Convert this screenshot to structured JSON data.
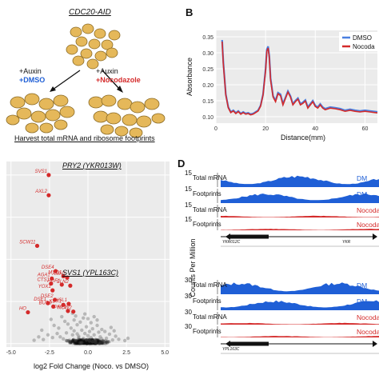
{
  "panelA": {
    "strain": "CDC20-AID",
    "left_line1": "+Auxin",
    "left_line2": "+DMSO",
    "right_line1": "+Auxin",
    "right_line2": "+Nocodazole",
    "caption": "Harvest total mRNA and ribosome footprints",
    "colors": {
      "dmso": "#1f5fd6",
      "noco": "#d42a2a",
      "cell": "#e5b85a",
      "cell_edge": "#8a6a25"
    }
  },
  "panelB": {
    "letter": "B",
    "chart_data": {
      "type": "line",
      "xlabel": "Distance(mm)",
      "ylabel": "Absorbance",
      "xlim": [
        0,
        65
      ],
      "ylim": [
        0.08,
        0.37
      ],
      "xticks": [
        0,
        20,
        40,
        60
      ],
      "yticks": [
        0.1,
        0.15,
        0.2,
        0.25,
        0.3,
        0.35
      ],
      "ytick_labels": [
        "0.10",
        "0.15",
        "0.20",
        "0.25",
        "0.30",
        "0.35"
      ],
      "legend_position": "top-right",
      "series": [
        {
          "name": "DMSO",
          "color": "#4a7fe0",
          "x": [
            2.5,
            3,
            4,
            5,
            6,
            7,
            8,
            9,
            10,
            11,
            12,
            13,
            14,
            15,
            16,
            17,
            18,
            19,
            20,
            20.5,
            21,
            21.5,
            22,
            23,
            24,
            25,
            26,
            27,
            28,
            29,
            30,
            31,
            32,
            33,
            34,
            35,
            36,
            37,
            38,
            39,
            40,
            41,
            42,
            43,
            44,
            46,
            48,
            50,
            52,
            54,
            56,
            58,
            60,
            62,
            64,
            65
          ],
          "y": [
            0.34,
            0.27,
            0.17,
            0.13,
            0.115,
            0.12,
            0.112,
            0.118,
            0.11,
            0.115,
            0.11,
            0.112,
            0.108,
            0.11,
            0.115,
            0.12,
            0.135,
            0.17,
            0.25,
            0.31,
            0.32,
            0.29,
            0.22,
            0.165,
            0.15,
            0.175,
            0.17,
            0.14,
            0.16,
            0.18,
            0.165,
            0.14,
            0.15,
            0.158,
            0.14,
            0.145,
            0.152,
            0.13,
            0.14,
            0.15,
            0.135,
            0.13,
            0.14,
            0.13,
            0.125,
            0.13,
            0.128,
            0.125,
            0.12,
            0.123,
            0.12,
            0.118,
            0.12,
            0.118,
            0.116,
            0.115
          ]
        },
        {
          "name": "Nocodazole",
          "color": "#d42a2a",
          "x": [
            2.5,
            3,
            4,
            5,
            6,
            7,
            8,
            9,
            10,
            11,
            12,
            13,
            14,
            15,
            16,
            17,
            18,
            19,
            20,
            20.5,
            21,
            21.5,
            22,
            23,
            24,
            25,
            26,
            27,
            28,
            29,
            30,
            31,
            32,
            33,
            34,
            35,
            36,
            37,
            38,
            39,
            40,
            41,
            42,
            43,
            44,
            46,
            48,
            50,
            52,
            54,
            56,
            58,
            60,
            62,
            64,
            65
          ],
          "y": [
            0.335,
            0.265,
            0.168,
            0.128,
            0.113,
            0.118,
            0.11,
            0.116,
            0.108,
            0.113,
            0.108,
            0.11,
            0.106,
            0.108,
            0.113,
            0.118,
            0.133,
            0.168,
            0.245,
            0.305,
            0.315,
            0.285,
            0.215,
            0.162,
            0.147,
            0.172,
            0.166,
            0.137,
            0.157,
            0.177,
            0.162,
            0.137,
            0.147,
            0.155,
            0.137,
            0.142,
            0.149,
            0.127,
            0.137,
            0.147,
            0.132,
            0.127,
            0.137,
            0.127,
            0.122,
            0.127,
            0.125,
            0.122,
            0.117,
            0.12,
            0.117,
            0.115,
            0.117,
            0.115,
            0.113,
            0.112
          ]
        }
      ]
    },
    "legend_dmso": "DMSO",
    "legend_noco": "Nocoda"
  },
  "panelC": {
    "chart_data": {
      "type": "scatter",
      "xlabel": "log2 Fold Change (Noco. vs DMSO)",
      "xlim": [
        -5.3,
        5.3
      ],
      "xticks": [
        -5.0,
        -2.5,
        0.0,
        2.5,
        5.0
      ],
      "xtick_labels": [
        "-5.0",
        "-2.5",
        "0.0",
        "2.5",
        "5.0"
      ],
      "highlighted": [
        {
          "label": "SVS1",
          "x": -2.55,
          "y": 50
        },
        {
          "label": "AXL2",
          "x": -2.55,
          "y": 44
        },
        {
          "label": "SCW11",
          "x": -3.3,
          "y": 29
        },
        {
          "label": "DSE4",
          "x": -2.1,
          "y": 21.5
        },
        {
          "label": "AGA1",
          "x": -2.35,
          "y": 19.3
        },
        {
          "label": "MYO1",
          "x": -1.6,
          "y": 20
        },
        {
          "label": "AMN1",
          "x": -1.35,
          "y": 19.6
        },
        {
          "label": "CTS1",
          "x": -2.4,
          "y": 17.8
        },
        {
          "label": "HOF1",
          "x": -1.7,
          "y": 17.5
        },
        {
          "label": "CLN2",
          "x": -1.15,
          "y": 17.2
        },
        {
          "label": "YOX1",
          "x": -2.3,
          "y": 15.8
        },
        {
          "label": "DSE2",
          "x": -2.15,
          "y": 13
        },
        {
          "label": "DSE1",
          "x": -2.6,
          "y": 12
        },
        {
          "label": "KDX1",
          "x": -1.6,
          "y": 11.5
        },
        {
          "label": "HSL1",
          "x": -1.25,
          "y": 11.8
        },
        {
          "label": "BUD9",
          "x": -2.25,
          "y": 11
        },
        {
          "label": "PRY2",
          "x": -1.3,
          "y": 9.7
        },
        {
          "label": "NCW2",
          "x": -0.95,
          "y": 9.5
        },
        {
          "label": "HO",
          "x": -3.9,
          "y": 9.3
        }
      ],
      "background_points": [
        [
          -0.3,
          1.5
        ],
        [
          0.2,
          1.8
        ],
        [
          -0.6,
          2.2
        ],
        [
          0.5,
          1.2
        ],
        [
          -1.0,
          2.6
        ],
        [
          0.8,
          2.0
        ],
        [
          -0.2,
          3.0
        ],
        [
          1.2,
          1.6
        ],
        [
          -1.4,
          3.2
        ],
        [
          0.1,
          0.8
        ],
        [
          -0.8,
          1.0
        ],
        [
          0.4,
          2.6
        ],
        [
          -1.8,
          2.0
        ],
        [
          1.6,
          1.1
        ],
        [
          -0.4,
          4.0
        ],
        [
          0.7,
          3.4
        ],
        [
          -1.1,
          4.6
        ],
        [
          -2.0,
          3.0
        ],
        [
          1.0,
          0.7
        ],
        [
          -0.1,
          5.0
        ],
        [
          0.3,
          4.4
        ],
        [
          -1.6,
          1.4
        ],
        [
          2.0,
          1.3
        ],
        [
          -0.7,
          5.6
        ],
        [
          1.4,
          2.8
        ],
        [
          -2.3,
          1.8
        ],
        [
          -0.5,
          6.4
        ],
        [
          0.9,
          4.2
        ],
        [
          -1.3,
          5.8
        ],
        [
          -1.9,
          4.6
        ],
        [
          0.6,
          5.4
        ],
        [
          -0.9,
          7.0
        ],
        [
          -2.6,
          2.6
        ],
        [
          1.8,
          2.2
        ],
        [
          -0.3,
          7.6
        ],
        [
          0.0,
          2.4
        ],
        [
          -1.2,
          0.6
        ],
        [
          0.5,
          0.4
        ],
        [
          -0.4,
          0.3
        ],
        [
          1.1,
          3.6
        ],
        [
          -2.9,
          1.2
        ],
        [
          2.4,
          0.9
        ],
        [
          -1.5,
          6.6
        ],
        [
          0.2,
          6.2
        ],
        [
          -0.8,
          8.2
        ],
        [
          -3.2,
          2.0
        ],
        [
          -0.1,
          1.1
        ],
        [
          0.9,
          1.4
        ],
        [
          -0.6,
          1.7
        ],
        [
          0.3,
          0.6
        ],
        [
          -1.7,
          8.0
        ],
        [
          1.3,
          0.5
        ],
        [
          -2.2,
          5.4
        ],
        [
          -0.2,
          8.8
        ],
        [
          0.6,
          7.0
        ],
        [
          -1.0,
          9.0
        ],
        [
          2.6,
          1.6
        ],
        [
          -3.5,
          1.0
        ],
        [
          1.7,
          3.8
        ],
        [
          -0.5,
          0.2
        ],
        [
          0.1,
          3.6
        ],
        [
          -1.4,
          0.9
        ],
        [
          0.8,
          0.2
        ],
        [
          -2.4,
          7.2
        ],
        [
          -0.9,
          3.8
        ],
        [
          0.4,
          8.0
        ],
        [
          -3.0,
          4.0
        ],
        [
          1.5,
          4.8
        ],
        [
          -0.7,
          2.9
        ],
        [
          0.0,
          7.4
        ]
      ]
    }
  },
  "panelD": {
    "letter": "D",
    "ylabel": "Counts Per Million",
    "gene1": {
      "title": "PRY2 (YKR013W)",
      "ytop": "15",
      "tracks": [
        {
          "label": "Total mRNA",
          "right": "DM",
          "color": "#1f5fd6"
        },
        {
          "label": "Footprints",
          "right": "DM",
          "color": "#1f5fd6"
        },
        {
          "label": "Total mRNA",
          "right": "Nocoda",
          "color": "#d42a2a"
        },
        {
          "label": "Footprints",
          "right": "Nocoda",
          "color": "#d42a2a"
        }
      ],
      "features": [
        "YKR012C",
        "YKR"
      ]
    },
    "gene2": {
      "title": "SVS1 (YPL163C)",
      "ytop": "30",
      "tracks": [
        {
          "label": "Total mRNA",
          "right": "DM",
          "color": "#1f5fd6"
        },
        {
          "label": "Footprints",
          "right": "DM",
          "color": "#1f5fd6"
        },
        {
          "label": "Total mRNA",
          "right": "Nocoda",
          "color": "#d42a2a"
        },
        {
          "label": "Footprints",
          "right": "Nocoda",
          "color": "#d42a2a"
        }
      ],
      "features": [
        "YPL163C"
      ]
    }
  }
}
